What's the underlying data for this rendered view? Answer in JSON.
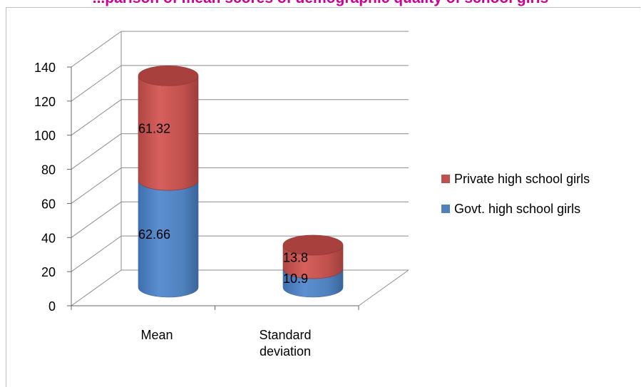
{
  "chart_data": {
    "type": "bar",
    "title": "...parison of mean scores of demographic quality of school girls",
    "categories": [
      "Mean",
      "Standard deviation"
    ],
    "category_lines": [
      [
        "Mean"
      ],
      [
        "Standard",
        "deviation"
      ]
    ],
    "series": [
      {
        "name": "Govt. high school girls",
        "values": [
          62.66,
          10.9
        ],
        "labels": [
          "62.66",
          "10.9"
        ]
      },
      {
        "name": "Private high school girls",
        "values": [
          61.32,
          13.8
        ],
        "labels": [
          "61.32",
          "13.8"
        ]
      }
    ],
    "ylim": [
      0,
      140
    ],
    "yticks": [
      "0",
      "20",
      "40",
      "60",
      "80",
      "100",
      "120",
      "140"
    ],
    "stacked": true,
    "bar_shape": "3d-cylinder",
    "grid": true,
    "legend_position": "right",
    "colors": {
      "govt": "#4f81bd",
      "private": "#c0504d"
    }
  }
}
